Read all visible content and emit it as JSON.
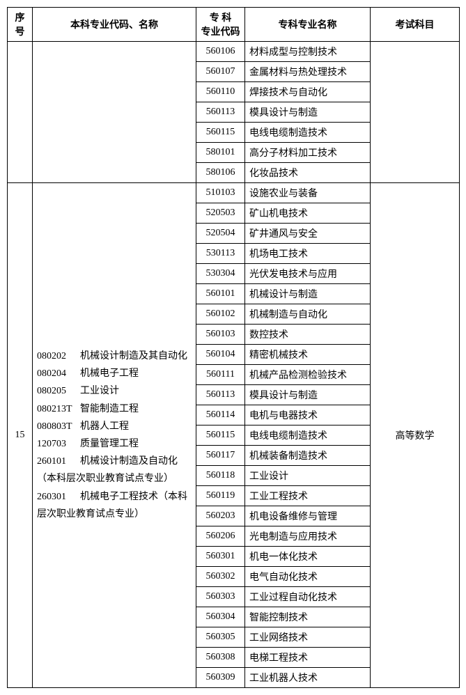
{
  "headers": {
    "seq": "序号",
    "major": "本科专业代码、名称",
    "code": "专 科\n专业代码",
    "name": "专科专业名称",
    "exam": "考试科目"
  },
  "group1": {
    "rows": [
      {
        "code": "560106",
        "name": "材料成型与控制技术"
      },
      {
        "code": "560107",
        "name": "金属材料与热处理技术"
      },
      {
        "code": "560110",
        "name": "焊接技术与自动化"
      },
      {
        "code": "560113",
        "name": "模具设计与制造"
      },
      {
        "code": "560115",
        "name": "电线电缆制造技术"
      },
      {
        "code": "580101",
        "name": "高分子材料加工技术"
      },
      {
        "code": "580106",
        "name": "化妆品技术"
      }
    ]
  },
  "group2": {
    "seq": "15",
    "exam": "高等数学",
    "majors": [
      {
        "code": "080202",
        "name": "机械设计制造及其自动化"
      },
      {
        "code": "080204",
        "name": "机械电子工程"
      },
      {
        "code": "080205",
        "name": "工业设计"
      },
      {
        "code": "080213T",
        "name": "智能制造工程"
      },
      {
        "code": "080803T",
        "name": "机器人工程"
      },
      {
        "code": "120703",
        "name": "质量管理工程"
      },
      {
        "code": "260101",
        "name": "机械设计制造及自动化（本科层次职业教育试点专业）"
      },
      {
        "code": "260301",
        "name": "机械电子工程技术（本科层次职业教育试点专业）"
      }
    ],
    "rows": [
      {
        "code": "510103",
        "name": "设施农业与装备"
      },
      {
        "code": "520503",
        "name": "矿山机电技术"
      },
      {
        "code": "520504",
        "name": "矿井通风与安全"
      },
      {
        "code": "530113",
        "name": "机场电工技术"
      },
      {
        "code": "530304",
        "name": "光伏发电技术与应用"
      },
      {
        "code": "560101",
        "name": "机械设计与制造"
      },
      {
        "code": "560102",
        "name": "机械制造与自动化"
      },
      {
        "code": "560103",
        "name": "数控技术"
      },
      {
        "code": "560104",
        "name": "精密机械技术"
      },
      {
        "code": "560111",
        "name": "机械产品检测检验技术"
      },
      {
        "code": "560113",
        "name": "模具设计与制造"
      },
      {
        "code": "560114",
        "name": "电机与电器技术"
      },
      {
        "code": "560115",
        "name": "电线电缆制造技术"
      },
      {
        "code": "560117",
        "name": "机械装备制造技术"
      },
      {
        "code": "560118",
        "name": "工业设计"
      },
      {
        "code": "560119",
        "name": "工业工程技术"
      },
      {
        "code": "560203",
        "name": "机电设备维修与管理"
      },
      {
        "code": "560206",
        "name": "光电制造与应用技术"
      },
      {
        "code": "560301",
        "name": "机电一体化技术"
      },
      {
        "code": "560302",
        "name": "电气自动化技术"
      },
      {
        "code": "560303",
        "name": "工业过程自动化技术"
      },
      {
        "code": "560304",
        "name": "智能控制技术"
      },
      {
        "code": "560305",
        "name": "工业网络技术"
      },
      {
        "code": "560308",
        "name": "电梯工程技术"
      },
      {
        "code": "560309",
        "name": "工业机器人技术"
      }
    ]
  }
}
